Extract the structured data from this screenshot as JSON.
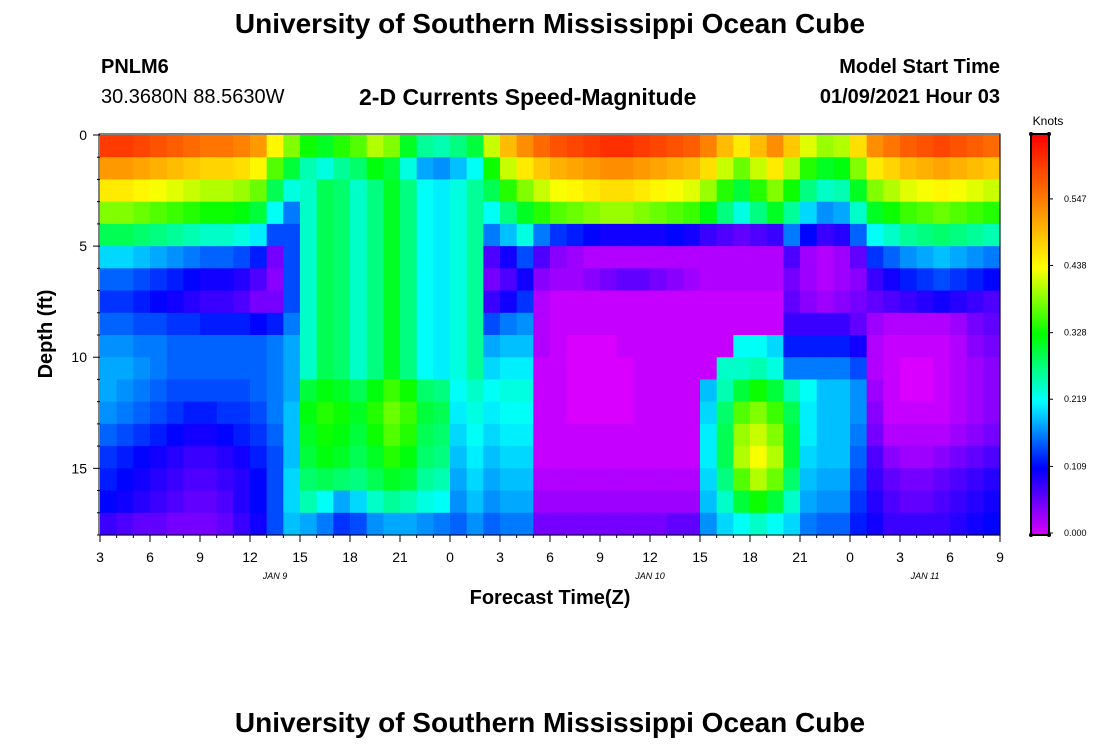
{
  "page": {
    "title_top": "University of Southern Mississippi Ocean Cube",
    "title_bottom": "University of Southern Mississippi Ocean Cube",
    "station_id": "PNLM6",
    "station_coords": "30.3680N 88.5630W",
    "plot_title": "2-D Currents Speed-Magnitude",
    "model_start_label": "Model Start Time",
    "model_start_value": "01/09/2021 Hour 03"
  },
  "colors": {
    "colormap": [
      "#d900ff",
      "#0000ff",
      "#00ffff",
      "#00ff00",
      "#ffff00",
      "#ff7f00",
      "#ff0000"
    ]
  },
  "chart_data": {
    "type": "heatmap",
    "title": "2-D Currents Speed-Magnitude",
    "xlabel": "Forecast Time(Z)",
    "ylabel": "Depth (ft)",
    "x_range_hours": [
      0,
      54
    ],
    "x_step_hours": 1,
    "x_tick_labels": [
      "3",
      "6",
      "9",
      "12",
      "15",
      "18",
      "21",
      "0",
      "3",
      "6",
      "9",
      "12",
      "15",
      "18",
      "21",
      "0",
      "3",
      "6",
      "9"
    ],
    "date_labels": [
      {
        "label": "JAN  9",
        "hour": 10.5
      },
      {
        "label": "JAN  10",
        "hour": 33
      },
      {
        "label": "JAN  11",
        "hour": 49.5
      }
    ],
    "y_range_ft": [
      0,
      18
    ],
    "y_ticks": [
      0,
      5,
      10,
      15
    ],
    "y_step_ft": 1,
    "colorbar": {
      "title": "Knots",
      "ticks": [
        "0.000",
        "0.109",
        "0.219",
        "0.328",
        "0.438",
        "0.547"
      ],
      "range": [
        0,
        0.65
      ]
    },
    "legend_position": "right",
    "grid": false,
    "values_knots": [
      [
        0.6,
        0.6,
        0.59,
        0.58,
        0.57,
        0.56,
        0.55,
        0.55,
        0.54,
        0.52,
        0.44,
        0.38,
        0.33,
        0.31,
        0.34,
        0.36,
        0.4,
        0.38,
        0.31,
        0.26,
        0.25,
        0.27,
        0.3,
        0.41,
        0.49,
        0.53,
        0.56,
        0.58,
        0.59,
        0.6,
        0.61,
        0.61,
        0.6,
        0.59,
        0.58,
        0.57,
        0.54,
        0.49,
        0.45,
        0.49,
        0.53,
        0.48,
        0.42,
        0.39,
        0.4,
        0.46,
        0.53,
        0.55,
        0.57,
        0.58,
        0.59,
        0.58,
        0.57,
        0.56
      ],
      [
        0.52,
        0.52,
        0.51,
        0.5,
        0.49,
        0.48,
        0.47,
        0.47,
        0.46,
        0.44,
        0.36,
        0.3,
        0.25,
        0.23,
        0.26,
        0.28,
        0.32,
        0.3,
        0.23,
        0.18,
        0.17,
        0.19,
        0.22,
        0.33,
        0.41,
        0.45,
        0.48,
        0.5,
        0.51,
        0.52,
        0.53,
        0.53,
        0.52,
        0.51,
        0.5,
        0.49,
        0.46,
        0.41,
        0.37,
        0.41,
        0.45,
        0.4,
        0.34,
        0.31,
        0.32,
        0.38,
        0.45,
        0.47,
        0.49,
        0.5,
        0.51,
        0.5,
        0.49,
        0.48
      ],
      [
        0.45,
        0.45,
        0.44,
        0.43,
        0.42,
        0.41,
        0.4,
        0.4,
        0.39,
        0.37,
        0.29,
        0.23,
        0.24,
        0.29,
        0.28,
        0.24,
        0.27,
        0.31,
        0.27,
        0.22,
        0.21,
        0.23,
        0.26,
        0.29,
        0.34,
        0.38,
        0.41,
        0.43,
        0.44,
        0.45,
        0.46,
        0.46,
        0.45,
        0.44,
        0.43,
        0.42,
        0.39,
        0.34,
        0.3,
        0.34,
        0.38,
        0.33,
        0.27,
        0.24,
        0.25,
        0.31,
        0.38,
        0.4,
        0.42,
        0.43,
        0.44,
        0.43,
        0.42,
        0.41
      ],
      [
        0.38,
        0.38,
        0.37,
        0.36,
        0.35,
        0.34,
        0.33,
        0.33,
        0.32,
        0.3,
        0.22,
        0.16,
        0.24,
        0.29,
        0.28,
        0.24,
        0.27,
        0.31,
        0.27,
        0.22,
        0.21,
        0.23,
        0.26,
        0.22,
        0.27,
        0.31,
        0.34,
        0.36,
        0.37,
        0.38,
        0.39,
        0.39,
        0.38,
        0.37,
        0.36,
        0.35,
        0.32,
        0.27,
        0.23,
        0.27,
        0.31,
        0.26,
        0.2,
        0.17,
        0.18,
        0.24,
        0.31,
        0.33,
        0.35,
        0.36,
        0.37,
        0.36,
        0.35,
        0.34
      ],
      [
        0.29,
        0.29,
        0.28,
        0.27,
        0.26,
        0.25,
        0.24,
        0.24,
        0.23,
        0.21,
        0.14,
        0.14,
        0.24,
        0.29,
        0.28,
        0.24,
        0.27,
        0.31,
        0.27,
        0.22,
        0.21,
        0.23,
        0.26,
        0.16,
        0.19,
        0.23,
        0.16,
        0.13,
        0.12,
        0.11,
        0.1,
        0.1,
        0.1,
        0.1,
        0.11,
        0.1,
        0.08,
        0.07,
        0.06,
        0.07,
        0.08,
        0.16,
        0.11,
        0.08,
        0.09,
        0.15,
        0.22,
        0.24,
        0.26,
        0.27,
        0.28,
        0.27,
        0.26,
        0.25
      ],
      [
        0.2,
        0.2,
        0.19,
        0.18,
        0.17,
        0.16,
        0.15,
        0.15,
        0.14,
        0.12,
        0.05,
        0.14,
        0.24,
        0.29,
        0.28,
        0.24,
        0.27,
        0.31,
        0.27,
        0.22,
        0.21,
        0.23,
        0.26,
        0.07,
        0.1,
        0.14,
        0.07,
        0.04,
        0.03,
        0.02,
        0.02,
        0.02,
        0.02,
        0.02,
        0.02,
        0.02,
        0.02,
        0.02,
        0.02,
        0.02,
        0.02,
        0.07,
        0.03,
        0.02,
        0.03,
        0.06,
        0.13,
        0.15,
        0.17,
        0.18,
        0.19,
        0.18,
        0.17,
        0.16
      ],
      [
        0.15,
        0.15,
        0.14,
        0.13,
        0.12,
        0.11,
        0.1,
        0.1,
        0.09,
        0.07,
        0.04,
        0.14,
        0.24,
        0.29,
        0.28,
        0.24,
        0.27,
        0.31,
        0.27,
        0.22,
        0.21,
        0.23,
        0.26,
        0.05,
        0.07,
        0.1,
        0.04,
        0.03,
        0.03,
        0.04,
        0.05,
        0.06,
        0.06,
        0.05,
        0.04,
        0.03,
        0.02,
        0.02,
        0.02,
        0.02,
        0.02,
        0.05,
        0.03,
        0.02,
        0.03,
        0.04,
        0.08,
        0.1,
        0.12,
        0.13,
        0.14,
        0.13,
        0.12,
        0.11
      ],
      [
        0.13,
        0.13,
        0.12,
        0.11,
        0.1,
        0.09,
        0.08,
        0.08,
        0.07,
        0.05,
        0.05,
        0.14,
        0.24,
        0.29,
        0.28,
        0.24,
        0.27,
        0.31,
        0.27,
        0.22,
        0.21,
        0.23,
        0.26,
        0.08,
        0.1,
        0.13,
        0.02,
        0.01,
        0.01,
        0.01,
        0.01,
        0.01,
        0.01,
        0.01,
        0.01,
        0.01,
        0.01,
        0.01,
        0.01,
        0.01,
        0.01,
        0.06,
        0.04,
        0.03,
        0.04,
        0.05,
        0.06,
        0.07,
        0.08,
        0.09,
        0.1,
        0.09,
        0.08,
        0.07
      ],
      [
        0.15,
        0.15,
        0.14,
        0.14,
        0.13,
        0.13,
        0.12,
        0.12,
        0.12,
        0.11,
        0.12,
        0.16,
        0.24,
        0.29,
        0.28,
        0.24,
        0.27,
        0.31,
        0.27,
        0.22,
        0.21,
        0.23,
        0.26,
        0.14,
        0.16,
        0.17,
        0.02,
        0.01,
        0.01,
        0.01,
        0.01,
        0.01,
        0.01,
        0.01,
        0.01,
        0.01,
        0.01,
        0.01,
        0.01,
        0.01,
        0.01,
        0.08,
        0.08,
        0.08,
        0.08,
        0.06,
        0.03,
        0.02,
        0.02,
        0.02,
        0.02,
        0.03,
        0.05,
        0.06
      ],
      [
        0.17,
        0.17,
        0.16,
        0.16,
        0.15,
        0.15,
        0.15,
        0.15,
        0.15,
        0.15,
        0.16,
        0.18,
        0.24,
        0.29,
        0.28,
        0.24,
        0.27,
        0.31,
        0.27,
        0.22,
        0.21,
        0.23,
        0.26,
        0.18,
        0.19,
        0.19,
        0.02,
        0.01,
        0.0,
        0.0,
        0.0,
        0.01,
        0.01,
        0.01,
        0.01,
        0.01,
        0.01,
        0.01,
        0.22,
        0.22,
        0.2,
        0.12,
        0.12,
        0.12,
        0.12,
        0.1,
        0.02,
        0.01,
        0.01,
        0.01,
        0.01,
        0.02,
        0.04,
        0.05
      ],
      [
        0.18,
        0.18,
        0.17,
        0.16,
        0.15,
        0.15,
        0.15,
        0.15,
        0.15,
        0.15,
        0.16,
        0.18,
        0.24,
        0.29,
        0.28,
        0.24,
        0.27,
        0.31,
        0.27,
        0.22,
        0.21,
        0.23,
        0.26,
        0.2,
        0.21,
        0.21,
        0.01,
        0.01,
        0.0,
        0.0,
        0.0,
        0.0,
        0.01,
        0.01,
        0.01,
        0.01,
        0.01,
        0.24,
        0.24,
        0.25,
        0.23,
        0.16,
        0.16,
        0.16,
        0.16,
        0.14,
        0.02,
        0.01,
        0.0,
        0.0,
        0.01,
        0.02,
        0.03,
        0.04
      ],
      [
        0.18,
        0.17,
        0.16,
        0.15,
        0.14,
        0.14,
        0.14,
        0.14,
        0.14,
        0.15,
        0.16,
        0.18,
        0.3,
        0.32,
        0.31,
        0.29,
        0.32,
        0.35,
        0.33,
        0.28,
        0.27,
        0.22,
        0.24,
        0.22,
        0.23,
        0.23,
        0.01,
        0.01,
        0.0,
        0.0,
        0.0,
        0.0,
        0.01,
        0.01,
        0.01,
        0.01,
        0.19,
        0.25,
        0.3,
        0.33,
        0.3,
        0.25,
        0.22,
        0.19,
        0.19,
        0.17,
        0.03,
        0.01,
        0.0,
        0.0,
        0.01,
        0.02,
        0.03,
        0.04
      ],
      [
        0.17,
        0.16,
        0.15,
        0.14,
        0.13,
        0.12,
        0.12,
        0.13,
        0.13,
        0.14,
        0.16,
        0.19,
        0.32,
        0.34,
        0.33,
        0.31,
        0.34,
        0.37,
        0.35,
        0.3,
        0.29,
        0.21,
        0.23,
        0.21,
        0.22,
        0.22,
        0.01,
        0.01,
        0.0,
        0.0,
        0.0,
        0.0,
        0.01,
        0.01,
        0.01,
        0.01,
        0.2,
        0.28,
        0.36,
        0.38,
        0.35,
        0.29,
        0.21,
        0.19,
        0.19,
        0.17,
        0.04,
        0.01,
        0.01,
        0.01,
        0.01,
        0.02,
        0.03,
        0.04
      ],
      [
        0.15,
        0.14,
        0.13,
        0.12,
        0.11,
        0.1,
        0.1,
        0.11,
        0.12,
        0.13,
        0.15,
        0.19,
        0.31,
        0.33,
        0.32,
        0.3,
        0.33,
        0.36,
        0.34,
        0.29,
        0.28,
        0.2,
        0.22,
        0.2,
        0.21,
        0.21,
        0.01,
        0.01,
        0.01,
        0.01,
        0.01,
        0.01,
        0.01,
        0.01,
        0.01,
        0.01,
        0.21,
        0.29,
        0.39,
        0.41,
        0.38,
        0.3,
        0.21,
        0.19,
        0.19,
        0.16,
        0.05,
        0.02,
        0.02,
        0.02,
        0.02,
        0.03,
        0.04,
        0.05
      ],
      [
        0.13,
        0.12,
        0.11,
        0.1,
        0.09,
        0.08,
        0.08,
        0.09,
        0.1,
        0.12,
        0.14,
        0.19,
        0.3,
        0.32,
        0.31,
        0.29,
        0.31,
        0.34,
        0.32,
        0.28,
        0.27,
        0.19,
        0.21,
        0.19,
        0.2,
        0.2,
        0.01,
        0.01,
        0.01,
        0.01,
        0.01,
        0.01,
        0.01,
        0.01,
        0.01,
        0.01,
        0.21,
        0.29,
        0.4,
        0.43,
        0.4,
        0.3,
        0.2,
        0.19,
        0.19,
        0.15,
        0.07,
        0.04,
        0.03,
        0.03,
        0.04,
        0.05,
        0.06,
        0.07
      ],
      [
        0.12,
        0.11,
        0.1,
        0.09,
        0.08,
        0.07,
        0.07,
        0.08,
        0.09,
        0.11,
        0.14,
        0.2,
        0.28,
        0.29,
        0.28,
        0.27,
        0.29,
        0.31,
        0.3,
        0.26,
        0.25,
        0.18,
        0.2,
        0.18,
        0.19,
        0.19,
        0.02,
        0.02,
        0.02,
        0.02,
        0.02,
        0.02,
        0.02,
        0.02,
        0.02,
        0.02,
        0.2,
        0.27,
        0.36,
        0.4,
        0.37,
        0.28,
        0.19,
        0.18,
        0.18,
        0.14,
        0.08,
        0.06,
        0.05,
        0.05,
        0.06,
        0.07,
        0.08,
        0.09
      ],
      [
        0.11,
        0.1,
        0.09,
        0.08,
        0.07,
        0.06,
        0.06,
        0.07,
        0.09,
        0.11,
        0.14,
        0.2,
        0.25,
        0.22,
        0.18,
        0.2,
        0.24,
        0.26,
        0.25,
        0.23,
        0.22,
        0.17,
        0.19,
        0.17,
        0.18,
        0.18,
        0.03,
        0.03,
        0.03,
        0.03,
        0.03,
        0.03,
        0.03,
        0.03,
        0.03,
        0.03,
        0.19,
        0.24,
        0.3,
        0.33,
        0.3,
        0.24,
        0.18,
        0.17,
        0.17,
        0.13,
        0.09,
        0.07,
        0.06,
        0.06,
        0.07,
        0.08,
        0.09,
        0.1
      ],
      [
        0.08,
        0.07,
        0.06,
        0.06,
        0.05,
        0.05,
        0.05,
        0.06,
        0.08,
        0.1,
        0.14,
        0.19,
        0.18,
        0.16,
        0.13,
        0.14,
        0.17,
        0.18,
        0.18,
        0.17,
        0.16,
        0.15,
        0.17,
        0.15,
        0.16,
        0.16,
        0.05,
        0.05,
        0.05,
        0.05,
        0.05,
        0.05,
        0.05,
        0.05,
        0.06,
        0.06,
        0.17,
        0.2,
        0.22,
        0.24,
        0.22,
        0.2,
        0.16,
        0.15,
        0.15,
        0.12,
        0.1,
        0.08,
        0.08,
        0.08,
        0.08,
        0.09,
        0.1,
        0.11
      ]
    ]
  }
}
